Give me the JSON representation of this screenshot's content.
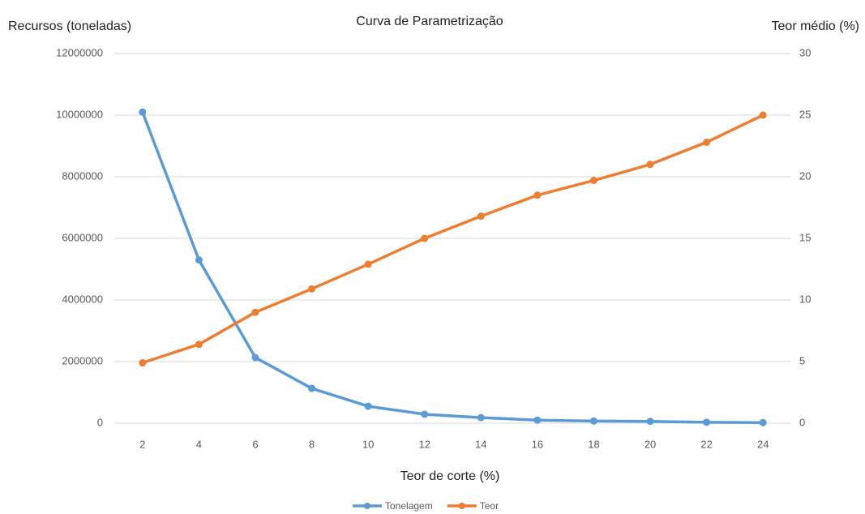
{
  "chart_data": {
    "type": "line",
    "title": "Curva de Parametrização",
    "y_label": "Recursos (toneladas)",
    "y2_label": "Teor médio (%)",
    "x_label": "Teor de corte (%)",
    "categories": [
      "2",
      "4",
      "6",
      "8",
      "10",
      "12",
      "14",
      "16",
      "18",
      "20",
      "22",
      "24"
    ],
    "series": [
      {
        "name": "Tonelagem",
        "color": "#5b9bd5",
        "values": [
          10100000,
          5300000,
          2130000,
          1130000,
          550000,
          290000,
          180000,
          100000,
          70000,
          60000,
          30000,
          20000
        ]
      },
      {
        "name": "Teor",
        "color": "#ed7d31",
        "axis": "y2",
        "values": [
          4.9,
          6.4,
          9.0,
          10.9,
          12.9,
          15.0,
          16.8,
          18.5,
          19.7,
          21.0,
          22.8,
          25.0
        ]
      }
    ],
    "ylim": [
      0,
      12000000
    ],
    "yticks": [
      0,
      2000000,
      4000000,
      6000000,
      8000000,
      10000000,
      12000000
    ],
    "y2lim": [
      0,
      30
    ],
    "y2ticks": [
      0,
      5,
      10,
      15,
      20,
      25,
      30
    ],
    "grid": true,
    "legend": "bottom"
  }
}
